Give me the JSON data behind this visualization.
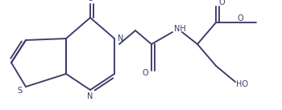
{
  "bg_color": "#ffffff",
  "line_color": "#3a3a6a",
  "lw": 1.35,
  "figsize": [
    3.5,
    1.37
  ],
  "dpi": 100,
  "xlim": [
    0,
    350
  ],
  "ylim": [
    0,
    137
  ]
}
